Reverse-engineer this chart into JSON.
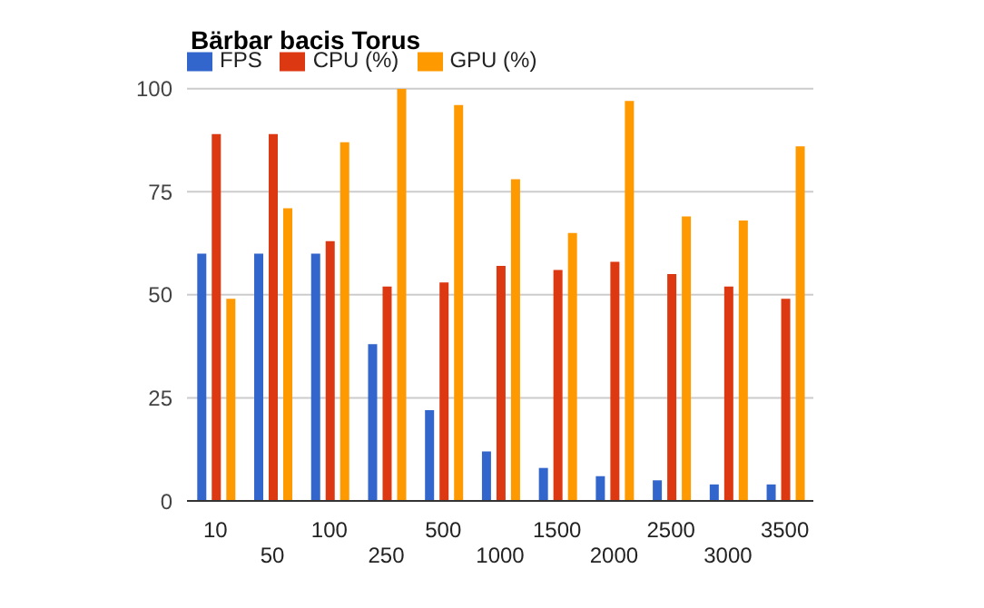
{
  "chart_data": {
    "type": "bar",
    "title": "Bärbar bacis Torus",
    "categories": [
      "10",
      "50",
      "100",
      "250",
      "500",
      "1000",
      "1500",
      "2000",
      "2500",
      "3000",
      "3500"
    ],
    "series": [
      {
        "name": "FPS",
        "color": "#3366cc",
        "values": [
          60,
          60,
          60,
          38,
          22,
          12,
          8,
          6,
          5,
          4,
          4
        ]
      },
      {
        "name": "CPU (%)",
        "color": "#dc3912",
        "values": [
          89,
          89,
          63,
          52,
          53,
          57,
          56,
          58,
          55,
          52,
          49
        ]
      },
      {
        "name": "GPU (%)",
        "color": "#ff9900",
        "values": [
          49,
          71,
          87,
          100,
          96,
          78,
          65,
          97,
          69,
          68,
          86
        ]
      }
    ],
    "ylim": [
      0,
      100
    ],
    "yticks": [
      0,
      25,
      50,
      75,
      100
    ],
    "grid": "y",
    "legend": "top left"
  }
}
